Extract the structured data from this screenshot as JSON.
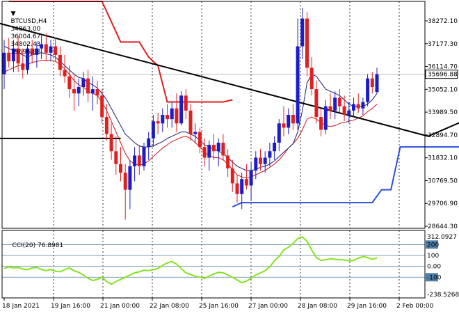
{
  "header": {
    "symbol": "BTCUSD,H4",
    "open": "34863.00",
    "high": "36004.67",
    "low": "34802.43",
    "close": "35696.88"
  },
  "indicator": {
    "label": "CCI(20) 76.8981"
  },
  "colors": {
    "bull_candle": "#1c1cc8",
    "bear_candle": "#e02020",
    "envelope_fast": "#1a1a6e",
    "envelope_slow": "#c81414",
    "resistance_step": "#e01c1c",
    "support_step": "#2b4fe0",
    "trendline": "#000000",
    "cci_line": "#84e31e",
    "cci_level_lines": "#4f7fa8",
    "price_tag_bg": "#ffffff"
  },
  "chart_data": [
    {
      "type": "candlestick",
      "title": "BTCUSD,H4",
      "price_axis_ticks": [
        "38272.10",
        "37177.30",
        "36114.70",
        "35052.10",
        "33989.50",
        "32894.70",
        "31832.10",
        "30769.50",
        "29706.90",
        "28644.30"
      ],
      "current_price_label": "35696.88",
      "time_axis_ticks": [
        "18 Jan 2021",
        "19 Jan 16:00",
        "21 Jan 00:00",
        "22 Jan 08:00",
        "25 Jan 16:00",
        "27 Jan 00:00",
        "28 Jan 08:00",
        "29 Jan 16:00",
        "2 Feb 00:00"
      ],
      "ylim": [
        28500,
        39100
      ],
      "candles": [
        {
          "o": 35700,
          "h": 37300,
          "l": 35000,
          "c": 36700
        },
        {
          "o": 36700,
          "h": 37400,
          "l": 36000,
          "c": 36300
        },
        {
          "o": 36300,
          "h": 37300,
          "l": 35800,
          "c": 36900
        },
        {
          "o": 36900,
          "h": 37500,
          "l": 35800,
          "c": 36200
        },
        {
          "o": 36200,
          "h": 36900,
          "l": 35500,
          "c": 35900
        },
        {
          "o": 35900,
          "h": 37100,
          "l": 35700,
          "c": 36900
        },
        {
          "o": 36900,
          "h": 37300,
          "l": 36200,
          "c": 36600
        },
        {
          "o": 36600,
          "h": 37200,
          "l": 36000,
          "c": 36900
        },
        {
          "o": 36900,
          "h": 37500,
          "l": 36400,
          "c": 37100
        },
        {
          "o": 37100,
          "h": 37600,
          "l": 36300,
          "c": 36700
        },
        {
          "o": 36700,
          "h": 37300,
          "l": 36300,
          "c": 37000
        },
        {
          "o": 37000,
          "h": 37400,
          "l": 36300,
          "c": 36600
        },
        {
          "o": 36600,
          "h": 37000,
          "l": 35600,
          "c": 35900
        },
        {
          "o": 35900,
          "h": 36600,
          "l": 35300,
          "c": 35600
        },
        {
          "o": 35600,
          "h": 36100,
          "l": 34600,
          "c": 35000
        },
        {
          "o": 35000,
          "h": 35700,
          "l": 34000,
          "c": 34800
        },
        {
          "o": 34800,
          "h": 35500,
          "l": 34200,
          "c": 35100
        },
        {
          "o": 35100,
          "h": 35800,
          "l": 34700,
          "c": 35500
        },
        {
          "o": 35500,
          "h": 35900,
          "l": 34400,
          "c": 34800
        },
        {
          "o": 34800,
          "h": 35600,
          "l": 34000,
          "c": 35000
        },
        {
          "o": 35000,
          "h": 35400,
          "l": 34300,
          "c": 34700
        },
        {
          "o": 34700,
          "h": 35000,
          "l": 33400,
          "c": 33700
        },
        {
          "o": 33700,
          "h": 34300,
          "l": 32600,
          "c": 32900
        },
        {
          "o": 32900,
          "h": 33400,
          "l": 31700,
          "c": 32100
        },
        {
          "o": 32100,
          "h": 32800,
          "l": 31000,
          "c": 31500
        },
        {
          "o": 31500,
          "h": 32300,
          "l": 30700,
          "c": 31100
        },
        {
          "o": 31100,
          "h": 31500,
          "l": 28900,
          "c": 30300
        },
        {
          "o": 30300,
          "h": 31700,
          "l": 29400,
          "c": 31400
        },
        {
          "o": 31400,
          "h": 32300,
          "l": 30700,
          "c": 31900
        },
        {
          "o": 31900,
          "h": 32400,
          "l": 31000,
          "c": 31400
        },
        {
          "o": 31400,
          "h": 32500,
          "l": 31200,
          "c": 32300
        },
        {
          "o": 32300,
          "h": 33000,
          "l": 31700,
          "c": 32700
        },
        {
          "o": 32700,
          "h": 33800,
          "l": 32300,
          "c": 33500
        },
        {
          "o": 33500,
          "h": 33900,
          "l": 32900,
          "c": 33400
        },
        {
          "o": 33400,
          "h": 34100,
          "l": 33000,
          "c": 33800
        },
        {
          "o": 33800,
          "h": 34300,
          "l": 33200,
          "c": 33600
        },
        {
          "o": 33600,
          "h": 34400,
          "l": 33200,
          "c": 34100
        },
        {
          "o": 34100,
          "h": 34800,
          "l": 33000,
          "c": 33400
        },
        {
          "o": 33400,
          "h": 34900,
          "l": 33300,
          "c": 34700
        },
        {
          "o": 34700,
          "h": 35000,
          "l": 33600,
          "c": 34000
        },
        {
          "o": 34000,
          "h": 34300,
          "l": 32600,
          "c": 32900
        },
        {
          "o": 32900,
          "h": 33400,
          "l": 32500,
          "c": 33000
        },
        {
          "o": 33000,
          "h": 33200,
          "l": 32000,
          "c": 32300
        },
        {
          "o": 32300,
          "h": 32700,
          "l": 31400,
          "c": 31800
        },
        {
          "o": 31800,
          "h": 32600,
          "l": 31200,
          "c": 32400
        },
        {
          "o": 32400,
          "h": 32900,
          "l": 31700,
          "c": 32100
        },
        {
          "o": 32100,
          "h": 32700,
          "l": 31400,
          "c": 32500
        },
        {
          "o": 32500,
          "h": 32900,
          "l": 31700,
          "c": 31900
        },
        {
          "o": 31900,
          "h": 32200,
          "l": 30900,
          "c": 31300
        },
        {
          "o": 31300,
          "h": 31700,
          "l": 30200,
          "c": 30600
        },
        {
          "o": 30600,
          "h": 31000,
          "l": 29700,
          "c": 30100
        },
        {
          "o": 30100,
          "h": 31100,
          "l": 29400,
          "c": 30800
        },
        {
          "o": 30800,
          "h": 31500,
          "l": 30300,
          "c": 30500
        },
        {
          "o": 30500,
          "h": 31600,
          "l": 29800,
          "c": 31200
        },
        {
          "o": 31200,
          "h": 32100,
          "l": 30800,
          "c": 31800
        },
        {
          "o": 31800,
          "h": 32200,
          "l": 31200,
          "c": 31500
        },
        {
          "o": 31500,
          "h": 32100,
          "l": 31100,
          "c": 31800
        },
        {
          "o": 31800,
          "h": 32500,
          "l": 31400,
          "c": 32100
        },
        {
          "o": 32100,
          "h": 32800,
          "l": 31700,
          "c": 32500
        },
        {
          "o": 32500,
          "h": 33600,
          "l": 32100,
          "c": 33400
        },
        {
          "o": 33400,
          "h": 34200,
          "l": 32800,
          "c": 33200
        },
        {
          "o": 33200,
          "h": 34100,
          "l": 32900,
          "c": 33800
        },
        {
          "o": 33800,
          "h": 34300,
          "l": 33100,
          "c": 33400
        },
        {
          "o": 33400,
          "h": 38300,
          "l": 33100,
          "c": 37000
        },
        {
          "o": 37000,
          "h": 38800,
          "l": 36400,
          "c": 38300
        },
        {
          "o": 38300,
          "h": 38600,
          "l": 35600,
          "c": 36000
        },
        {
          "o": 36000,
          "h": 36500,
          "l": 34700,
          "c": 35000
        },
        {
          "o": 35000,
          "h": 35400,
          "l": 33400,
          "c": 33700
        },
        {
          "o": 33700,
          "h": 34100,
          "l": 32800,
          "c": 33100
        },
        {
          "o": 33100,
          "h": 34500,
          "l": 32900,
          "c": 34200
        },
        {
          "o": 34200,
          "h": 34800,
          "l": 33600,
          "c": 34000
        },
        {
          "o": 34000,
          "h": 34900,
          "l": 33600,
          "c": 34600
        },
        {
          "o": 34600,
          "h": 35000,
          "l": 33900,
          "c": 34200
        },
        {
          "o": 34200,
          "h": 34700,
          "l": 33500,
          "c": 33800
        },
        {
          "o": 33800,
          "h": 34400,
          "l": 33400,
          "c": 34000
        },
        {
          "o": 34000,
          "h": 34600,
          "l": 33700,
          "c": 34300
        },
        {
          "o": 34300,
          "h": 34800,
          "l": 33900,
          "c": 34100
        },
        {
          "o": 34100,
          "h": 34600,
          "l": 33800,
          "c": 34400
        },
        {
          "o": 34400,
          "h": 35700,
          "l": 34200,
          "c": 35500
        },
        {
          "o": 35500,
          "h": 35800,
          "l": 34800,
          "c": 35100
        },
        {
          "o": 34863,
          "h": 36004.67,
          "l": 34802.43,
          "c": 35696.88
        }
      ],
      "envelope_fast": [
        37000,
        36900,
        36800,
        36700,
        36600,
        36500,
        36600,
        36650,
        36700,
        36650,
        36600,
        36500,
        36300,
        36100,
        35900,
        35700,
        35550,
        35500,
        35300,
        35200,
        35050,
        34800,
        34500,
        34100,
        33700,
        33300,
        32900,
        32700,
        32500,
        32350,
        32300,
        32300,
        32350,
        32450,
        32550,
        32700,
        32800,
        32900,
        33000,
        33000,
        32900,
        32800,
        32600,
        32400,
        32300,
        32200,
        32100,
        32000,
        31800,
        31600,
        31400,
        31300,
        31200,
        31200,
        31250,
        31350,
        31400,
        31500,
        31650,
        31850,
        32050,
        32250,
        32450,
        33000,
        34000,
        35300,
        35700,
        35600,
        35300,
        35000,
        34900,
        34800,
        34700,
        34500,
        34300,
        34200,
        34200,
        34200,
        34300,
        34500,
        34800
      ],
      "envelope_slow": [
        35800,
        35900,
        36000,
        36100,
        36100,
        36150,
        36250,
        36300,
        36350,
        36350,
        36350,
        36300,
        36150,
        35950,
        35700,
        35400,
        35200,
        35100,
        34900,
        34800,
        34700,
        34400,
        34000,
        33500,
        33000,
        32500,
        32000,
        31650,
        31500,
        31450,
        31500,
        31650,
        31850,
        32050,
        32250,
        32400,
        32550,
        32650,
        32750,
        32800,
        32700,
        32500,
        32300,
        32050,
        31900,
        31800,
        31800,
        31700,
        31500,
        31250,
        31000,
        30900,
        30850,
        30900,
        31000,
        31100,
        31200,
        31350,
        31500,
        31700,
        31950,
        32250,
        32450,
        32700,
        33100,
        33600,
        33700,
        33600,
        33450,
        33300,
        33250,
        33300,
        33400,
        33450,
        33500,
        33550,
        33650,
        33750,
        33950,
        34100,
        34300
      ],
      "resistance_step": [
        [
          0,
          39100
        ],
        [
          10,
          39100
        ],
        [
          12,
          37200
        ],
        [
          14,
          37200
        ],
        [
          15,
          36500
        ],
        [
          16,
          36100
        ],
        [
          17,
          34400
        ],
        [
          23,
          34400
        ],
        [
          24,
          34500
        ]
      ],
      "support_step": [
        [
          24,
          29500
        ],
        [
          25,
          29700
        ],
        [
          39,
          29700
        ],
        [
          40,
          30300
        ],
        [
          41,
          30300
        ],
        [
          42,
          32300
        ],
        [
          52,
          32300
        ],
        [
          53,
          32500
        ]
      ],
      "trendlines": [
        {
          "from": [
            -3,
            38300
          ],
          "to": [
            45,
            32800
          ]
        },
        {
          "from": [
            45,
            32800
          ],
          "to": [
            54,
            34500
          ]
        },
        {
          "from": [
            -3,
            32700
          ],
          "to": [
            12,
            32700
          ]
        }
      ]
    },
    {
      "type": "line",
      "title": "CCI(20) 76.8981",
      "ylim": [
        -290,
        330
      ],
      "levels": [
        200,
        100,
        0,
        -100
      ],
      "axis_ticks": [
        "312.0927",
        "200",
        "100",
        "0.00",
        "-100",
        "-238.5268"
      ],
      "values": [
        -20,
        -5,
        -15,
        -10,
        -25,
        -30,
        -15,
        -10,
        -30,
        -40,
        -30,
        -45,
        -50,
        -30,
        -15,
        -40,
        -55,
        -80,
        -110,
        -130,
        -120,
        -100,
        -140,
        -165,
        -140,
        -120,
        -100,
        -80,
        -60,
        -50,
        -35,
        -40,
        -30,
        -20,
        10,
        30,
        45,
        20,
        -20,
        -60,
        -75,
        -90,
        -100,
        -110,
        -90,
        -70,
        -55,
        -60,
        -80,
        -100,
        -125,
        -150,
        -135,
        -110,
        -80,
        -60,
        -40,
        -5,
        50,
        90,
        150,
        175,
        210,
        255,
        270,
        230,
        150,
        80,
        55,
        60,
        70,
        65,
        60,
        60,
        50,
        55,
        75,
        90,
        80,
        65,
        77
      ]
    }
  ]
}
